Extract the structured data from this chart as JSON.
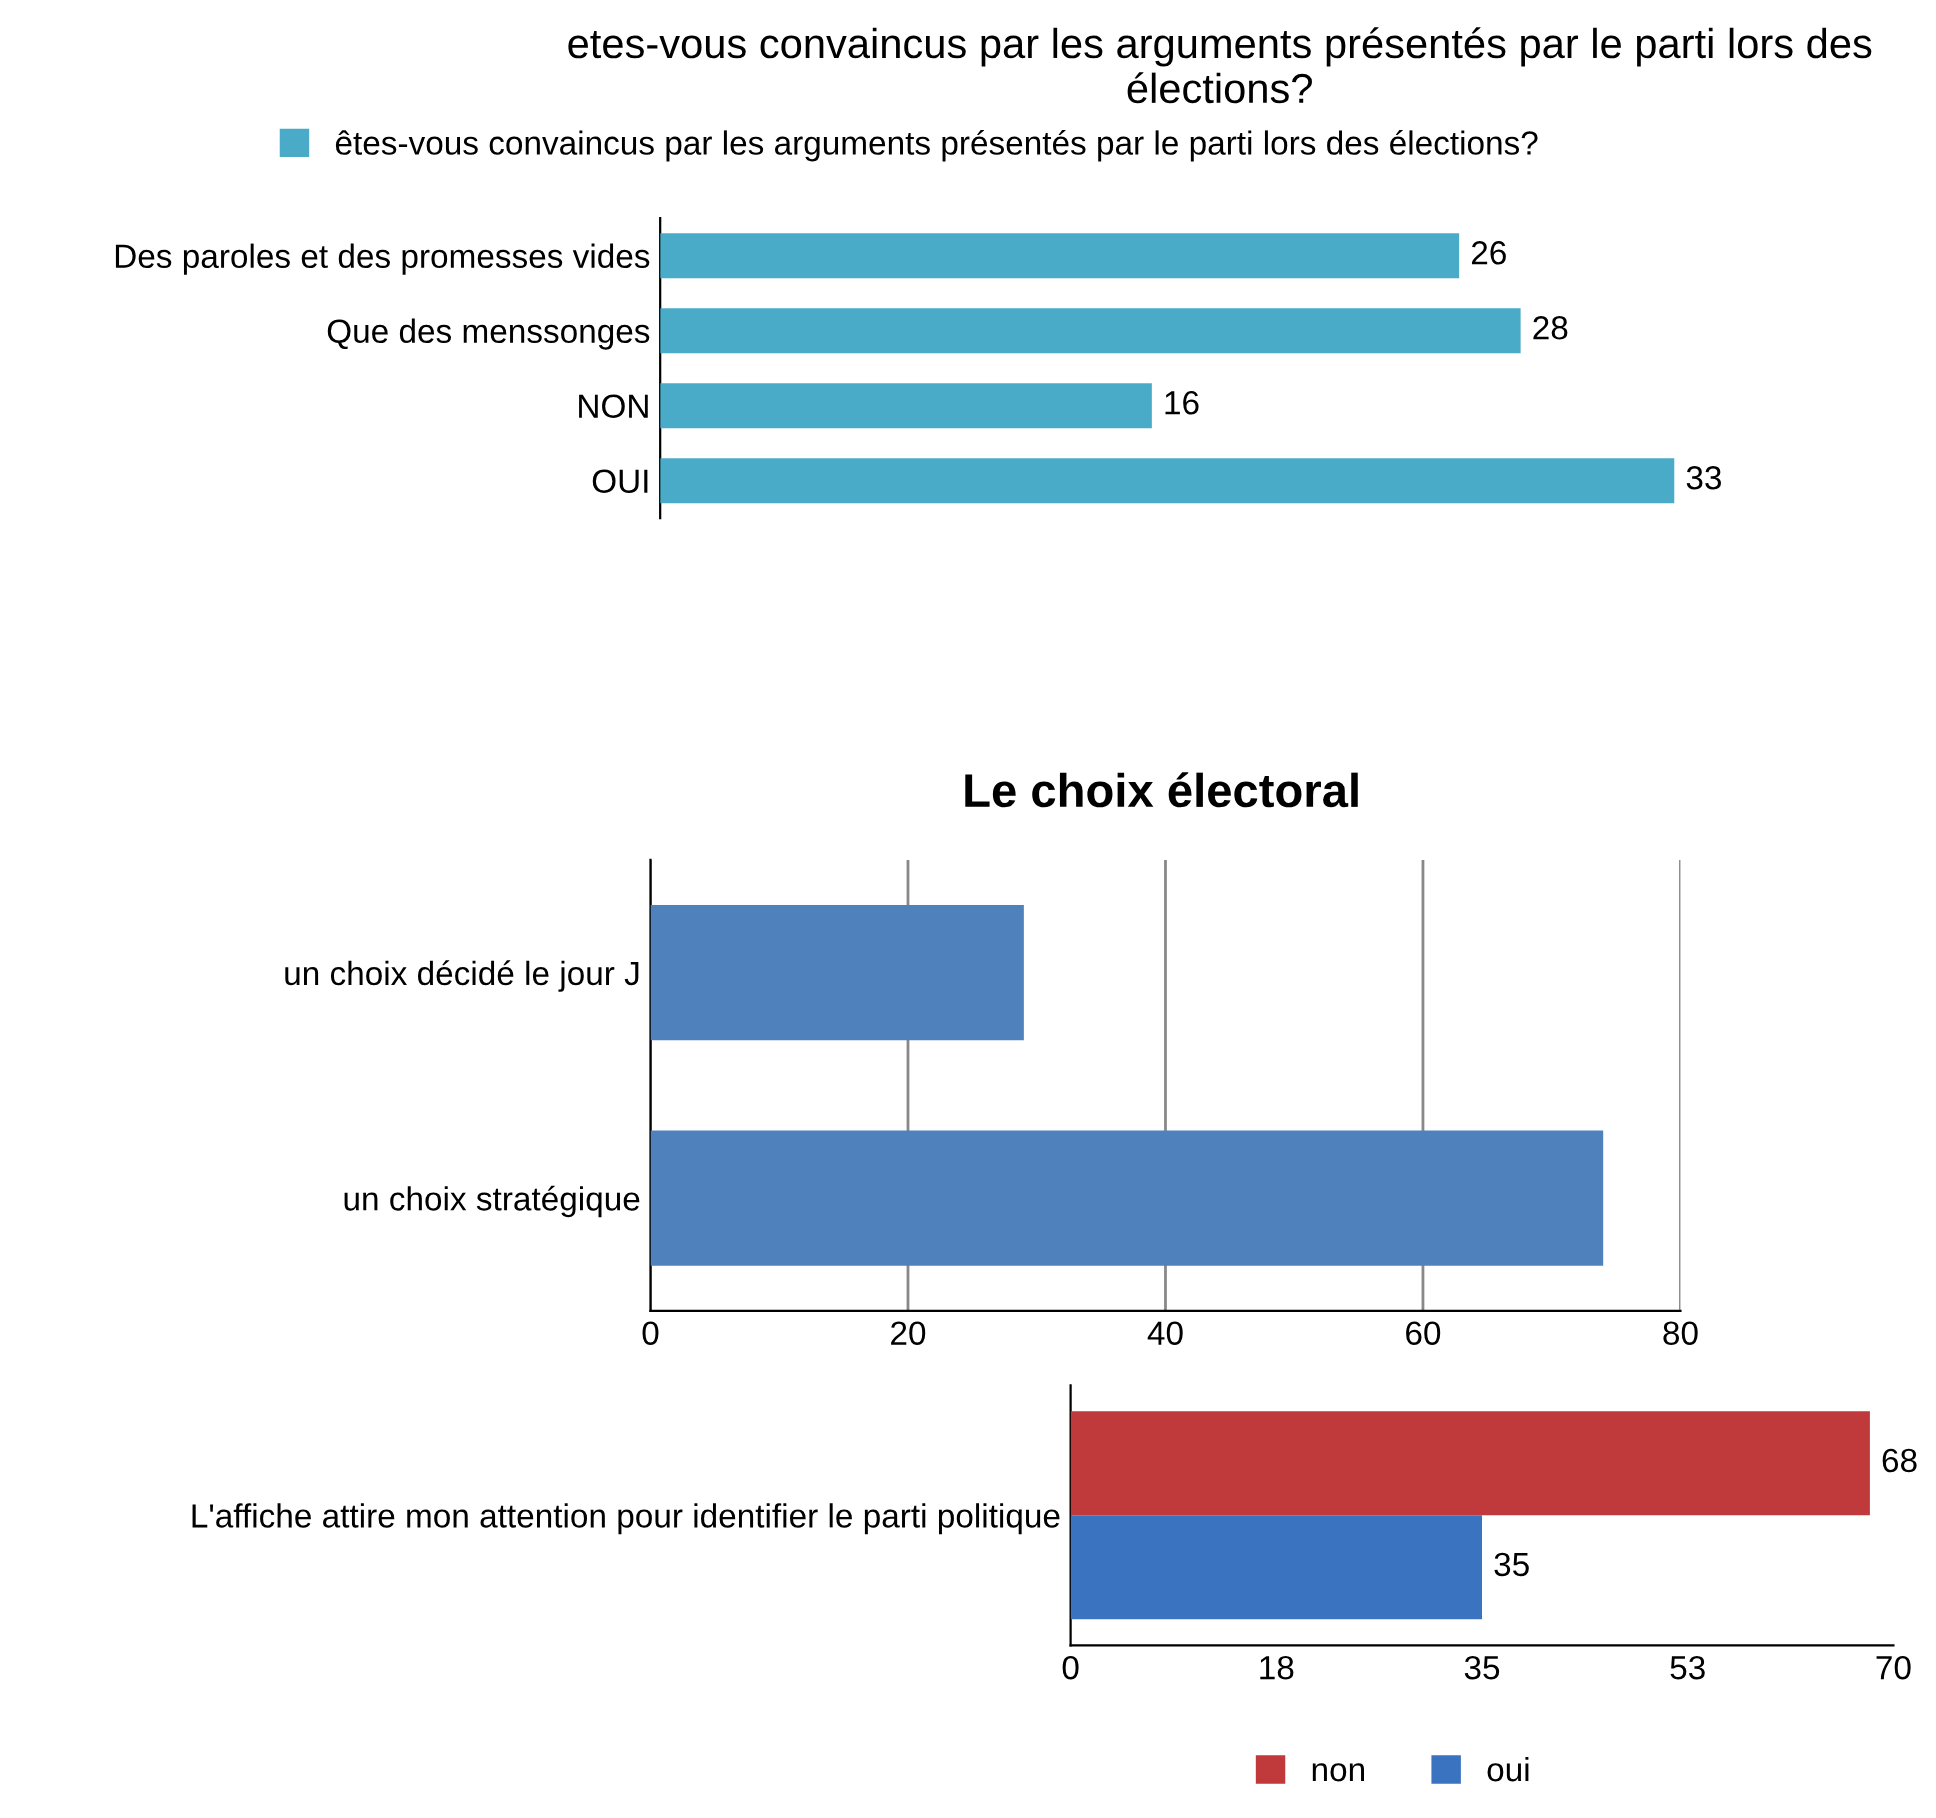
{
  "chart_data": [
    {
      "type": "bar",
      "orientation": "horizontal",
      "title": "etes-vous convaincus par les arguments présentés par le parti lors des élections?",
      "categories": [
        "Des paroles et des promesses vides",
        "Que des menssonges",
        "NON",
        "OUI"
      ],
      "series": [
        {
          "name": "êtes-vous convaincus par les arguments présentés par le parti lors des élections?",
          "color": "#4aabc8",
          "values": [
            26,
            28,
            16,
            33
          ]
        }
      ],
      "data_labels": true,
      "legend": "top",
      "grid": false
    },
    {
      "type": "bar",
      "orientation": "horizontal",
      "title": "Le choix électoral",
      "categories": [
        "un choix décidé le jour J",
        "un choix stratégique"
      ],
      "series": [
        {
          "color": "#4f81bd",
          "values": [
            29,
            74
          ]
        }
      ],
      "xlim": [
        0,
        80
      ],
      "xticks": [
        0,
        20,
        40,
        60,
        80
      ],
      "grid": "x"
    },
    {
      "type": "bar",
      "orientation": "horizontal",
      "categories": [
        "L'affiche attire mon attention pour identifier le parti politique"
      ],
      "series": [
        {
          "name": "non",
          "color": "#c0393b",
          "values": [
            68
          ]
        },
        {
          "name": "oui",
          "color": "#3a73c0",
          "values": [
            35
          ]
        }
      ],
      "xlim": [
        0,
        70
      ],
      "xticks": [
        0,
        {
          "value": 17.5,
          "label": "18"
        },
        35,
        {
          "value": 52.5,
          "label": "53"
        },
        70
      ],
      "data_labels": true,
      "legend": "bottom",
      "grid": false
    }
  ]
}
